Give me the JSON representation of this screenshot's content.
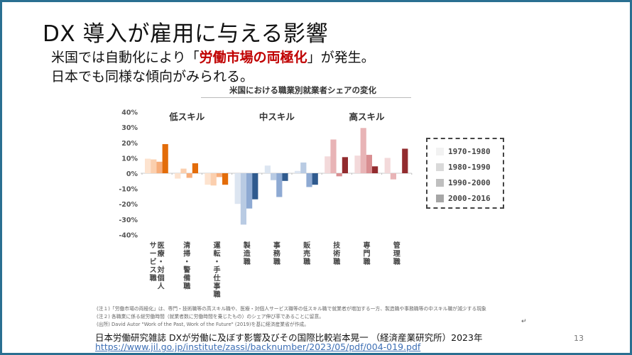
{
  "slide": {
    "title": "DX 導入が雇用に与える影響",
    "subtitle1_pre": "米国では自動化により「",
    "subtitle1_highlight": "労働市場の両極化",
    "subtitle1_post": "」が発生。",
    "subtitle2": "日本でも同様な傾向がみられる。",
    "notes": [
      "(注１)「労働市場の両極化」は、専門・技術職等の高スキル職や、医療・対個人サービス職等の低スキル職で就業者が増加する一方、製造職や事務職等の中スキル職が減少する現象",
      "(注２) 各職業に係る総労働時間（就業者数に労働時間を乗じたもの）のシェア伸び率であることに留意。",
      "(出所) David Autor \"Work of the Past, Work of the Future\" (2019)を基に経済産業省が作成。"
    ],
    "citation": "日本労働研究雑誌 DXが労働に及ぼす影響及びその国際比較岩本晃一 （経済産業研究所）2023年",
    "link": "https://www.jil.go.jp/institute/zassi/backnumber/2023/05/pdf/004-019.pdf",
    "page_number": "13",
    "return_mark": "↵",
    "highlight_color": "#c00000",
    "border_color": "#2a6f91"
  },
  "chart_data": {
    "type": "bar",
    "title": "米国における職業別就業者シェアの変化",
    "xlabel": "",
    "ylabel": "",
    "ylim": [
      -40,
      40
    ],
    "yticks": [
      40,
      30,
      20,
      10,
      0,
      -10,
      -20,
      -30,
      -40
    ],
    "ytick_labels": [
      "40%",
      "30%",
      "20%",
      "10%",
      "0%",
      "-10%",
      "-20%",
      "-30%",
      "-40%"
    ],
    "grid": false,
    "legend_position": "right",
    "groups": [
      {
        "label": "低スキル",
        "categories": [
          0,
          1,
          2
        ],
        "palette": [
          "#fde3cf",
          "#fbcfae",
          "#f7ad7a",
          "#e36c09"
        ]
      },
      {
        "label": "中スキル",
        "categories": [
          3,
          4,
          5
        ],
        "palette": [
          "#dce5f1",
          "#b9cbe3",
          "#8eaad3",
          "#2f5a8e"
        ]
      },
      {
        "label": "高スキル",
        "categories": [
          6,
          7,
          8
        ],
        "palette": [
          "#f3d9da",
          "#e8b4b6",
          "#d98e91",
          "#922b2e"
        ]
      }
    ],
    "categories": [
      "医療・対個人サービス職",
      "清掃・警備職",
      "運転・手仕事職",
      "製造職",
      "事務職",
      "販売職",
      "技術職",
      "専門職",
      "管理職"
    ],
    "category_lines": [
      [
        "医療・対個人",
        "サービス職"
      ],
      [
        "清掃・警備職"
      ],
      [
        "運転・手仕事職"
      ],
      [
        "製造職"
      ],
      [
        "事務職"
      ],
      [
        "販売職"
      ],
      [
        "技術職"
      ],
      [
        "専門職"
      ],
      [
        "管理職"
      ]
    ],
    "series": [
      {
        "name": "1970-1980",
        "values": [
          9.5,
          -3.5,
          -7.5,
          -20,
          5,
          1.5,
          11,
          11.5,
          10
        ]
      },
      {
        "name": "1980-1990",
        "values": [
          9,
          3,
          -8,
          -33.5,
          -4.5,
          7,
          22,
          29.5,
          -4
        ]
      },
      {
        "name": "1990-2000",
        "values": [
          7.5,
          -3,
          -2.5,
          -23,
          -15.5,
          -9,
          -2,
          12,
          0
        ]
      },
      {
        "name": "2000-2016",
        "values": [
          19,
          6.5,
          -7.5,
          -17,
          -5,
          -7.5,
          10.5,
          4.5,
          16
        ]
      }
    ],
    "legend_colors": [
      "#f2f2f2",
      "#d9d9d9",
      "#bfbfbf",
      "#a6a6a6"
    ]
  }
}
